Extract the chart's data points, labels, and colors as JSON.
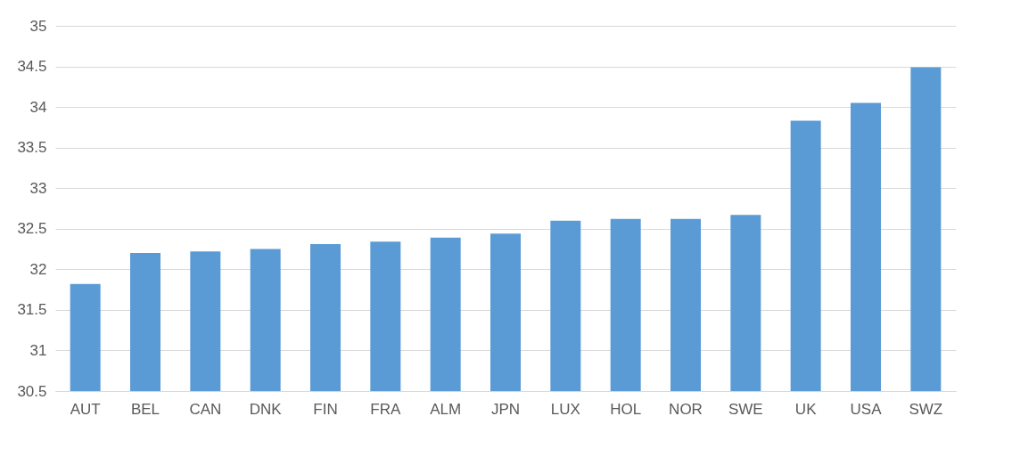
{
  "chart_data": {
    "type": "bar",
    "categories": [
      "AUT",
      "BEL",
      "CAN",
      "DNK",
      "FIN",
      "FRA",
      "ALM",
      "JPN",
      "LUX",
      "HOL",
      "NOR",
      "SWE",
      "UK",
      "USA",
      "SWZ"
    ],
    "values": [
      31.82,
      32.2,
      32.22,
      32.25,
      32.31,
      32.34,
      32.39,
      32.44,
      32.6,
      32.62,
      32.62,
      32.67,
      33.83,
      34.05,
      34.49
    ],
    "color": "#5b9bd5",
    "ylim": [
      30.5,
      35
    ],
    "yticks": [
      30.5,
      31,
      31.5,
      32,
      32.5,
      33,
      33.5,
      34,
      34.5,
      35
    ],
    "grid": "y"
  }
}
